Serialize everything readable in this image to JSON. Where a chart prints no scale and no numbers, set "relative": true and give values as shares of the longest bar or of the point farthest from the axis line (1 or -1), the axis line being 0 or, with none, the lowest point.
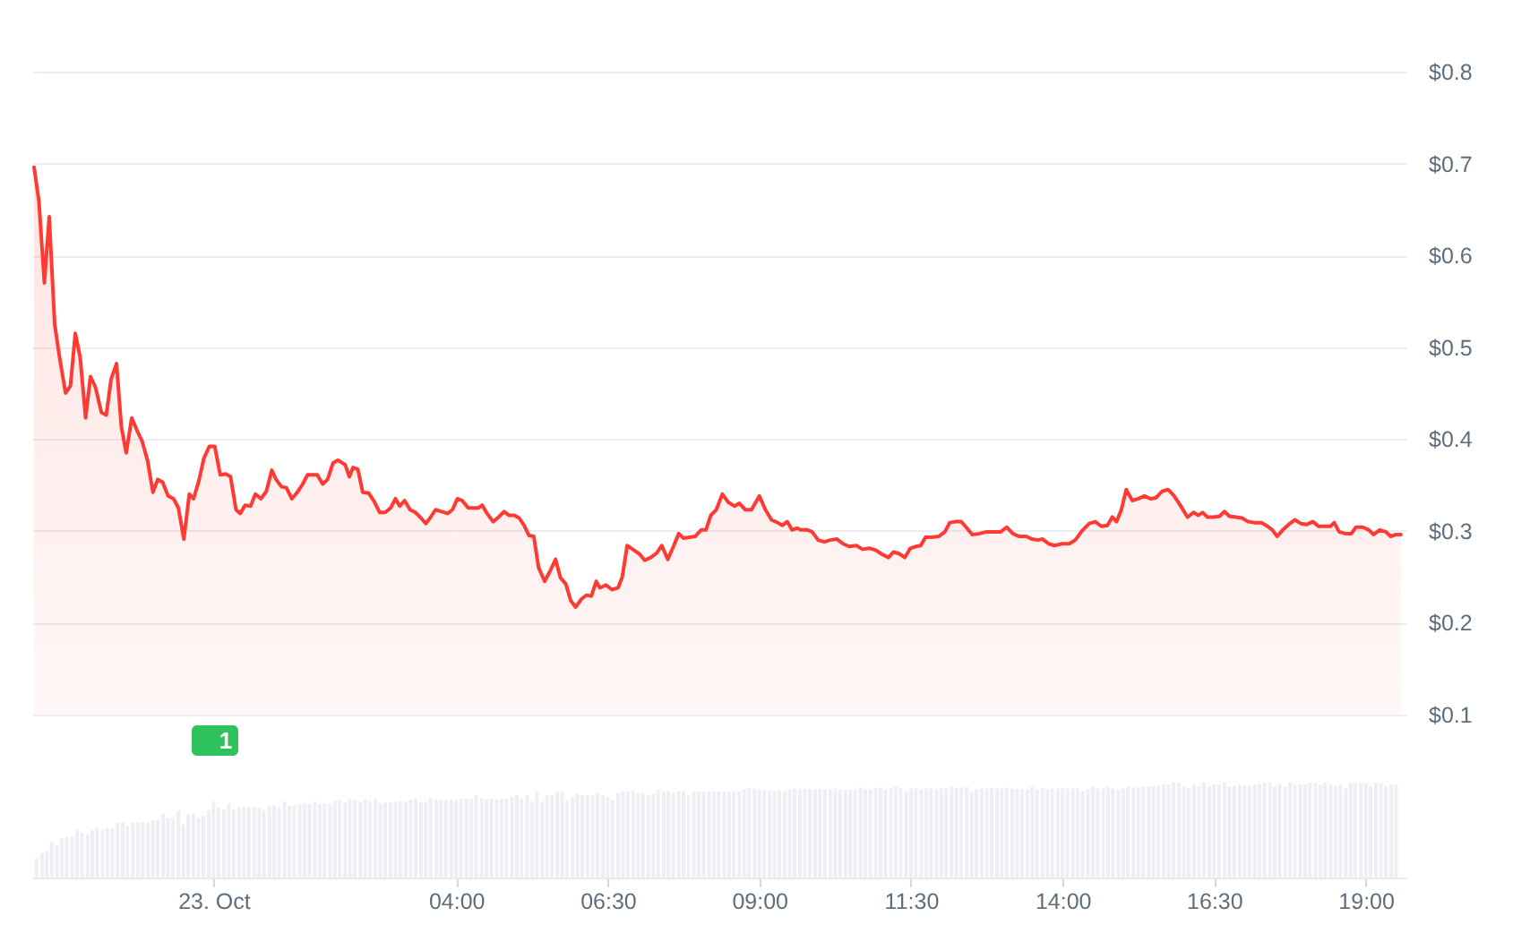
{
  "chart_data": [
    {
      "type": "area",
      "x": [
        -2.96,
        -2.88,
        -2.79,
        -2.71,
        -2.62,
        -2.54,
        -2.44,
        -2.36,
        -2.28,
        -2.2,
        -2.11,
        -2.03,
        -1.95,
        -1.85,
        -1.77,
        -1.69,
        -1.6,
        -1.52,
        -1.44,
        -1.35,
        -1.26,
        -1.18,
        -1.09,
        -1.0,
        -0.92,
        -0.84,
        -0.75,
        -0.66,
        -0.58,
        -0.49,
        -0.4,
        -0.33,
        -0.24,
        -0.16,
        -0.07,
        0.02,
        0.11,
        0.2,
        0.28,
        0.37,
        0.44,
        0.52,
        0.61,
        0.69,
        0.78,
        0.87,
        0.96,
        1.03,
        1.12,
        1.2,
        1.29,
        1.38,
        1.47,
        1.55,
        1.63,
        1.71,
        1.8,
        1.88,
        1.97,
        2.05,
        2.17,
        2.24,
        2.3,
        2.38,
        2.46,
        2.56,
        2.65,
        2.74,
        2.83,
        2.92,
        3.0,
        3.07,
        3.15,
        3.24,
        3.33,
        3.42,
        3.5,
        3.57,
        3.66,
        3.76,
        3.86,
        3.94,
        4.02,
        4.1,
        4.2,
        4.3,
        4.37,
        4.43,
        4.51,
        4.61,
        4.7,
        4.79,
        4.87,
        4.96,
        5.04,
        5.12,
        5.2,
        5.28,
        5.36,
        5.46,
        5.54,
        5.64,
        5.72,
        5.81,
        5.89,
        5.97,
        6.07,
        6.15,
        6.23,
        6.31,
        6.37,
        6.47,
        6.57,
        6.67,
        6.74,
        6.82,
        6.91,
        7.02,
        7.11,
        7.21,
        7.31,
        7.39,
        7.49,
        7.59,
        7.67,
        7.75,
        7.85,
        7.94,
        8.04,
        8.12,
        8.2,
        8.29,
        8.39,
        8.49,
        8.59,
        8.67,
        8.77,
        8.87,
        9.0,
        9.1,
        9.2,
        9.3,
        9.38,
        9.46,
        9.54,
        9.62,
        9.69,
        9.79,
        9.87,
        9.97,
        10.07,
        10.17,
        10.28,
        10.38,
        10.48,
        10.6,
        10.7,
        10.82,
        10.92,
        11.01,
        11.13,
        11.21,
        11.31,
        11.4,
        11.49,
        11.58,
        11.66,
        11.74,
        11.84,
        11.96,
        12.06,
        12.14,
        12.23,
        12.33,
        12.41,
        12.51,
        12.63,
        12.75,
        12.87,
        12.98,
        13.08,
        13.18,
        13.28,
        13.4,
        13.5,
        13.59,
        13.67,
        13.77,
        13.87,
        13.99,
        14.11,
        14.21,
        14.32,
        14.44,
        14.54,
        14.64,
        14.74,
        14.82,
        14.89,
        14.97,
        15.05,
        15.15,
        15.25,
        15.35,
        15.45,
        15.54,
        15.64,
        15.74,
        15.84,
        15.94,
        16.06,
        16.16,
        16.24,
        16.31,
        16.39,
        16.49,
        16.59,
        16.67,
        16.75,
        16.86,
        16.96,
        17.06,
        17.16,
        17.28,
        17.38,
        17.46,
        17.54,
        17.63,
        17.73,
        17.83,
        17.93,
        18.03,
        18.13,
        18.22,
        18.32,
        18.42,
        18.48,
        18.56,
        18.66,
        18.76,
        18.84,
        18.95,
        19.05,
        19.13,
        19.23,
        19.33,
        19.41,
        19.5,
        19.58
      ],
      "series": [
        {
          "color": "#ff3a33",
          "values": [
            0.696,
            0.659,
            0.57,
            0.642,
            0.525,
            0.489,
            0.45,
            0.458,
            0.515,
            0.489,
            0.423,
            0.468,
            0.457,
            0.429,
            0.426,
            0.465,
            0.482,
            0.413,
            0.385,
            0.423,
            0.409,
            0.398,
            0.377,
            0.342,
            0.356,
            0.353,
            0.338,
            0.335,
            0.325,
            0.291,
            0.34,
            0.335,
            0.355,
            0.379,
            0.392,
            0.392,
            0.361,
            0.362,
            0.359,
            0.323,
            0.319,
            0.328,
            0.327,
            0.34,
            0.335,
            0.343,
            0.366,
            0.356,
            0.348,
            0.347,
            0.335,
            0.342,
            0.351,
            0.361,
            0.361,
            0.361,
            0.351,
            0.356,
            0.374,
            0.377,
            0.372,
            0.359,
            0.369,
            0.367,
            0.342,
            0.341,
            0.332,
            0.32,
            0.32,
            0.325,
            0.335,
            0.327,
            0.333,
            0.323,
            0.32,
            0.314,
            0.308,
            0.314,
            0.323,
            0.321,
            0.319,
            0.323,
            0.335,
            0.333,
            0.325,
            0.325,
            0.325,
            0.328,
            0.319,
            0.31,
            0.315,
            0.321,
            0.317,
            0.317,
            0.314,
            0.306,
            0.295,
            0.294,
            0.26,
            0.245,
            0.255,
            0.269,
            0.249,
            0.242,
            0.224,
            0.217,
            0.226,
            0.23,
            0.229,
            0.245,
            0.238,
            0.241,
            0.236,
            0.238,
            0.25,
            0.284,
            0.28,
            0.275,
            0.268,
            0.271,
            0.276,
            0.284,
            0.269,
            0.284,
            0.297,
            0.292,
            0.293,
            0.294,
            0.301,
            0.301,
            0.317,
            0.323,
            0.34,
            0.331,
            0.327,
            0.33,
            0.323,
            0.323,
            0.338,
            0.323,
            0.312,
            0.309,
            0.306,
            0.31,
            0.301,
            0.303,
            0.301,
            0.301,
            0.299,
            0.29,
            0.288,
            0.29,
            0.291,
            0.286,
            0.283,
            0.284,
            0.28,
            0.281,
            0.279,
            0.275,
            0.271,
            0.277,
            0.275,
            0.271,
            0.281,
            0.283,
            0.284,
            0.293,
            0.293,
            0.294,
            0.299,
            0.309,
            0.31,
            0.31,
            0.304,
            0.296,
            0.297,
            0.299,
            0.299,
            0.299,
            0.304,
            0.297,
            0.294,
            0.294,
            0.291,
            0.29,
            0.291,
            0.286,
            0.284,
            0.286,
            0.286,
            0.29,
            0.3,
            0.308,
            0.31,
            0.305,
            0.306,
            0.315,
            0.31,
            0.323,
            0.345,
            0.333,
            0.335,
            0.338,
            0.335,
            0.336,
            0.343,
            0.345,
            0.338,
            0.328,
            0.315,
            0.32,
            0.317,
            0.32,
            0.315,
            0.315,
            0.316,
            0.321,
            0.316,
            0.315,
            0.314,
            0.31,
            0.309,
            0.309,
            0.305,
            0.301,
            0.294,
            0.301,
            0.307,
            0.312,
            0.308,
            0.307,
            0.31,
            0.305,
            0.305,
            0.305,
            0.309,
            0.299,
            0.297,
            0.297,
            0.304,
            0.304,
            0.301,
            0.296,
            0.301,
            0.299,
            0.294,
            0.296,
            0.296
          ]
        }
      ],
      "xlim": [
        -2.99,
        19.67
      ],
      "ylim": [
        0.1,
        0.8
      ],
      "yticks": [
        {
          "value": 0.1,
          "label": "$0.1"
        },
        {
          "value": 0.2,
          "label": "$0.2"
        },
        {
          "value": 0.3,
          "label": "$0.3"
        },
        {
          "value": 0.4,
          "label": "$0.4"
        },
        {
          "value": 0.5,
          "label": "$0.5"
        },
        {
          "value": 0.6,
          "label": "$0.6"
        },
        {
          "value": 0.7,
          "label": "$0.7"
        },
        {
          "value": 0.8,
          "label": "$0.8"
        }
      ],
      "grid": "y",
      "tick_labels": "y"
    },
    {
      "type": "bar",
      "relative": true,
      "x": [
        -2.92,
        -2.83,
        -2.75,
        -2.67,
        -2.58,
        -2.5,
        -2.42,
        -2.33,
        -2.25,
        -2.17,
        -2.08,
        -2,
        -1.92,
        -1.83,
        -1.75,
        -1.67,
        -1.58,
        -1.5,
        -1.42,
        -1.33,
        -1.25,
        -1.17,
        -1.08,
        -1,
        -0.92,
        -0.83,
        -0.75,
        -0.67,
        -0.58,
        -0.5,
        -0.42,
        -0.33,
        -0.25,
        -0.17,
        -0.08,
        0,
        0.08,
        0.17,
        0.25,
        0.33,
        0.42,
        0.5,
        0.58,
        0.67,
        0.75,
        0.83,
        0.92,
        1,
        1.08,
        1.17,
        1.25,
        1.33,
        1.42,
        1.5,
        1.58,
        1.67,
        1.75,
        1.83,
        1.92,
        2,
        2.08,
        2.17,
        2.25,
        2.33,
        2.42,
        2.5,
        2.58,
        2.67,
        2.75,
        2.83,
        2.92,
        3,
        3.08,
        3.17,
        3.25,
        3.33,
        3.42,
        3.5,
        3.58,
        3.67,
        3.75,
        3.83,
        3.92,
        4,
        4.08,
        4.17,
        4.25,
        4.33,
        4.42,
        4.5,
        4.58,
        4.67,
        4.75,
        4.83,
        4.92,
        5,
        5.08,
        5.17,
        5.25,
        5.33,
        5.42,
        5.5,
        5.58,
        5.67,
        5.75,
        5.83,
        5.92,
        6,
        6.08,
        6.17,
        6.25,
        6.33,
        6.42,
        6.5,
        6.58,
        6.67,
        6.75,
        6.83,
        6.92,
        7,
        7.08,
        7.17,
        7.25,
        7.33,
        7.42,
        7.5,
        7.58,
        7.67,
        7.75,
        7.83,
        7.92,
        8,
        8.08,
        8.17,
        8.25,
        8.33,
        8.42,
        8.5,
        8.58,
        8.67,
        8.75,
        8.83,
        8.92,
        9,
        9.08,
        9.17,
        9.25,
        9.33,
        9.42,
        9.5,
        9.58,
        9.67,
        9.75,
        9.83,
        9.92,
        10,
        10.08,
        10.17,
        10.25,
        10.33,
        10.42,
        10.5,
        10.58,
        10.67,
        10.75,
        10.83,
        10.92,
        11,
        11.08,
        11.17,
        11.25,
        11.33,
        11.42,
        11.5,
        11.58,
        11.67,
        11.75,
        11.83,
        11.92,
        12,
        12.08,
        12.17,
        12.25,
        12.33,
        12.42,
        12.5,
        12.58,
        12.67,
        12.75,
        12.83,
        12.92,
        13,
        13.08,
        13.17,
        13.25,
        13.33,
        13.42,
        13.5,
        13.58,
        13.67,
        13.75,
        13.83,
        13.92,
        14,
        14.08,
        14.17,
        14.25,
        14.33,
        14.42,
        14.5,
        14.58,
        14.67,
        14.75,
        14.83,
        14.92,
        15,
        15.08,
        15.17,
        15.25,
        15.33,
        15.42,
        15.5,
        15.58,
        15.67,
        15.75,
        15.83,
        15.92,
        16,
        16.08,
        16.17,
        16.25,
        16.33,
        16.42,
        16.5,
        16.58,
        16.67,
        16.75,
        16.83,
        16.92,
        17,
        17.08,
        17.17,
        17.25,
        17.33,
        17.42,
        17.5,
        17.58,
        17.67,
        17.75,
        17.83,
        17.92,
        18,
        18.08,
        18.17,
        18.25,
        18.33,
        18.42,
        18.5,
        18.58,
        18.67,
        18.75,
        18.83,
        18.92,
        19,
        19.08,
        19.17,
        19.25,
        19.33,
        19.42,
        19.5
      ],
      "series": [
        {
          "color": "#eceff3",
          "values": [
            0.2,
            0.26,
            0.28,
            0.37,
            0.34,
            0.41,
            0.43,
            0.43,
            0.5,
            0.47,
            0.45,
            0.5,
            0.53,
            0.5,
            0.52,
            0.52,
            0.58,
            0.58,
            0.54,
            0.58,
            0.58,
            0.58,
            0.58,
            0.6,
            0.61,
            0.67,
            0.63,
            0.63,
            0.71,
            0.56,
            0.67,
            0.67,
            0.63,
            0.65,
            0.71,
            0.8,
            0.74,
            0.72,
            0.78,
            0.72,
            0.74,
            0.75,
            0.74,
            0.74,
            0.74,
            0.71,
            0.76,
            0.76,
            0.74,
            0.8,
            0.76,
            0.76,
            0.77,
            0.78,
            0.78,
            0.8,
            0.78,
            0.78,
            0.78,
            0.81,
            0.82,
            0.79,
            0.82,
            0.82,
            0.8,
            0.82,
            0.8,
            0.83,
            0.78,
            0.79,
            0.79,
            0.8,
            0.81,
            0.8,
            0.82,
            0.83,
            0.8,
            0.8,
            0.83,
            0.82,
            0.82,
            0.82,
            0.82,
            0.82,
            0.83,
            0.83,
            0.83,
            0.87,
            0.83,
            0.82,
            0.83,
            0.82,
            0.83,
            0.83,
            0.85,
            0.87,
            0.83,
            0.87,
            0.8,
            0.91,
            0.8,
            0.87,
            0.87,
            0.91,
            0.91,
            0.82,
            0.85,
            0.89,
            0.87,
            0.87,
            0.87,
            0.89,
            0.87,
            0.85,
            0.82,
            0.89,
            0.91,
            0.91,
            0.91,
            0.89,
            0.89,
            0.87,
            0.89,
            0.93,
            0.91,
            0.91,
            0.89,
            0.91,
            0.91,
            0.87,
            0.91,
            0.91,
            0.91,
            0.91,
            0.91,
            0.91,
            0.91,
            0.91,
            0.91,
            0.91,
            0.93,
            0.94,
            0.94,
            0.93,
            0.92,
            0.92,
            0.91,
            0.92,
            0.91,
            0.93,
            0.94,
            0.93,
            0.93,
            0.93,
            0.93,
            0.93,
            0.93,
            0.93,
            0.94,
            0.93,
            0.93,
            0.93,
            0.93,
            0.95,
            0.93,
            0.93,
            0.94,
            0.95,
            0.93,
            0.94,
            0.96,
            0.94,
            0.91,
            0.94,
            0.94,
            0.93,
            0.94,
            0.94,
            0.93,
            0.94,
            0.94,
            0.96,
            0.95,
            0.95,
            0.96,
            0.91,
            0.93,
            0.94,
            0.94,
            0.94,
            0.94,
            0.94,
            0.95,
            0.94,
            0.93,
            0.93,
            0.93,
            0.96,
            0.93,
            0.94,
            0.93,
            0.94,
            0.94,
            0.94,
            0.94,
            0.94,
            0.94,
            0.91,
            0.93,
            0.96,
            0.94,
            0.94,
            0.96,
            0.94,
            0.93,
            0.94,
            0.96,
            0.95,
            0.95,
            0.96,
            0.96,
            0.96,
            0.97,
            0.98,
            0.98,
            1,
            1,
            0.96,
            0.94,
            0.98,
            0.96,
            1,
            0.96,
            0.98,
            0.98,
            1,
            0.96,
            0.97,
            0.98,
            0.97,
            0.97,
            0.98,
            0.99,
            1,
            1,
            0.96,
            0.98,
            0.96,
            1,
            0.98,
            0.98,
            0.98,
            1,
            1,
            0.98,
            1,
            0.98,
            0.96,
            0.98,
            0.94,
            1,
            1,
            1,
            1,
            0.96,
            1,
            1,
            0.96,
            0.98,
            0.98
          ]
        }
      ],
      "xlim": [
        -2.99,
        19.67
      ],
      "xticks": [
        {
          "value": 0,
          "label": "23. Oct"
        },
        {
          "value": 4,
          "label": "04:00"
        },
        {
          "value": 6.5,
          "label": "06:30"
        },
        {
          "value": 9,
          "label": "09:00"
        },
        {
          "value": 11.5,
          "label": "11:30"
        },
        {
          "value": 14,
          "label": "14:00"
        },
        {
          "value": 16.5,
          "label": "16:30"
        },
        {
          "value": 19,
          "label": "19:00"
        }
      ],
      "tick_labels": "x",
      "annotations": [
        "1"
      ]
    }
  ]
}
